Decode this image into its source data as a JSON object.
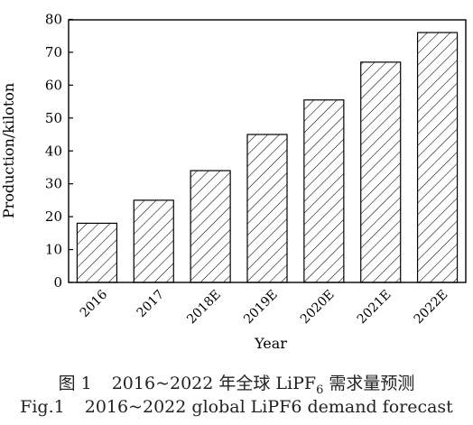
{
  "chart_data": {
    "type": "bar",
    "categories": [
      "2016",
      "2017",
      "2018E",
      "2019E",
      "2020E",
      "2021E",
      "2022E"
    ],
    "values": [
      18,
      25,
      34,
      45,
      55.5,
      67,
      76
    ],
    "xlabel": "Year",
    "ylabel": "Production/kiloton",
    "ylim": [
      0,
      80
    ],
    "yticks": [
      0,
      10,
      20,
      30,
      40,
      50,
      60,
      70,
      80
    ],
    "grid": false,
    "bar_fill": "diagonal-hatch",
    "bar_color": "#000000"
  },
  "caption": {
    "cn_fig": "图 1",
    "cn_text": "2016~2022 年全球 LiPF",
    "cn_sub": "6",
    "cn_tail": " 需求量预测",
    "en_fig": "Fig.1",
    "en_text": "2016~2022 global LiPF6 demand forecast"
  }
}
